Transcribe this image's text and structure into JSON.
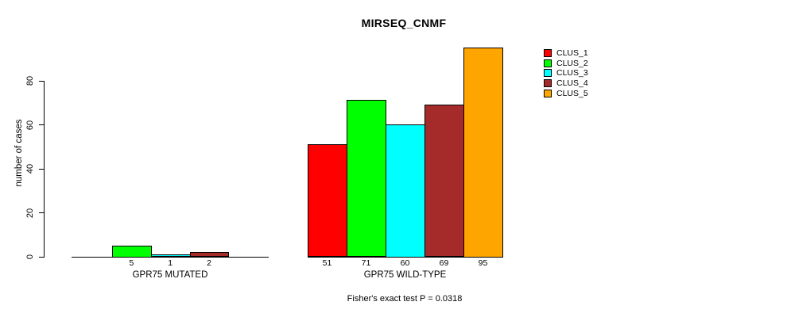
{
  "title": "MIRSEQ_CNMF",
  "caption": "Fisher's exact test P = 0.0318",
  "ylabel": "number of cases",
  "colors": {
    "CLUS_1": "#FF0000",
    "CLUS_2": "#00FF00",
    "CLUS_3": "#00FFFF",
    "CLUS_4": "#A52A2A",
    "CLUS_5": "#FFA500",
    "axis": "#000000",
    "background": "#FFFFFF"
  },
  "legend": [
    {
      "label": "CLUS_1",
      "color": "#FF0000"
    },
    {
      "label": "CLUS_2",
      "color": "#00FF00"
    },
    {
      "label": "CLUS_3",
      "color": "#00FFFF"
    },
    {
      "label": "CLUS_4",
      "color": "#A52A2A"
    },
    {
      "label": "CLUS_5",
      "color": "#FFA500"
    }
  ],
  "chart_data": {
    "type": "bar",
    "title": "MIRSEQ_CNMF",
    "ylabel": "number of cases",
    "xlabel": "",
    "ylim": [
      0,
      95
    ],
    "yticks": [
      0,
      20,
      40,
      60,
      80
    ],
    "grid": false,
    "legend_position": "right-outside",
    "legend_entries": [
      "CLUS_1",
      "CLUS_2",
      "CLUS_3",
      "CLUS_4",
      "CLUS_5"
    ],
    "groups": [
      {
        "label": "GPR75 MUTATED",
        "bars": [
          {
            "cluster": "CLUS_2",
            "value": 5,
            "color": "#00FF00"
          },
          {
            "cluster": "CLUS_3",
            "value": 1,
            "color": "#00FFFF"
          },
          {
            "cluster": "CLUS_4",
            "value": 2,
            "color": "#A52A2A"
          }
        ]
      },
      {
        "label": "GPR75 WILD-TYPE",
        "bars": [
          {
            "cluster": "CLUS_1",
            "value": 51,
            "color": "#FF0000"
          },
          {
            "cluster": "CLUS_2",
            "value": 71,
            "color": "#00FF00"
          },
          {
            "cluster": "CLUS_3",
            "value": 60,
            "color": "#00FFFF"
          },
          {
            "cluster": "CLUS_4",
            "value": 69,
            "color": "#A52A2A"
          },
          {
            "cluster": "CLUS_5",
            "value": 95,
            "color": "#FFA500"
          }
        ]
      }
    ],
    "annotation": "Fisher's exact test P = 0.0318"
  }
}
